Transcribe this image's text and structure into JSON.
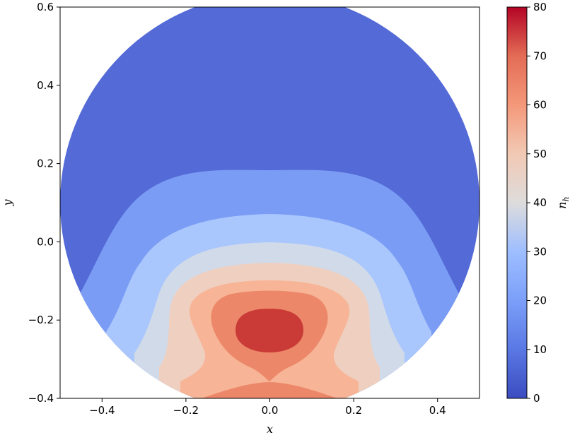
{
  "chart_data": {
    "type": "contourf",
    "title": "",
    "xlabel": "x",
    "ylabel": "y",
    "colorbar_label": "n_h",
    "colorbar_label_main": "n",
    "colorbar_label_sub": "h",
    "colormap": "coolwarm",
    "xlim": [
      -0.5,
      0.5
    ],
    "ylim": [
      -0.4,
      0.6
    ],
    "x_ticks": [
      -0.4,
      -0.2,
      0.0,
      0.2,
      0.4
    ],
    "x_tick_labels": [
      "−0.4",
      "−0.2",
      "0.0",
      "0.2",
      "0.4"
    ],
    "y_ticks": [
      -0.4,
      -0.2,
      0.0,
      0.2,
      0.4,
      0.6
    ],
    "y_tick_labels": [
      "−0.4",
      "−0.2",
      "0.0",
      "0.2",
      "0.4",
      "0.6"
    ],
    "colorbar_range": [
      0,
      80
    ],
    "colorbar_ticks": [
      0,
      10,
      20,
      30,
      40,
      50,
      60,
      70,
      80
    ],
    "colorbar_tick_labels": [
      "0",
      "10",
      "20",
      "30",
      "40",
      "50",
      "60",
      "70",
      "80"
    ],
    "domain": {
      "shape": "circle",
      "center": [
        0.0,
        0.1
      ],
      "radius": 0.5
    },
    "levels": [
      {
        "range": [
          0,
          10
        ],
        "color": "#536ad7"
      },
      {
        "range": [
          10,
          20
        ],
        "color": "#7a9cf4"
      },
      {
        "range": [
          20,
          30
        ],
        "color": "#a9c6fd"
      },
      {
        "range": [
          30,
          40
        ],
        "color": "#d1dae9"
      },
      {
        "range": [
          40,
          50
        ],
        "color": "#efcfbf"
      },
      {
        "range": [
          50,
          60
        ],
        "color": "#f7b496"
      },
      {
        "range": [
          60,
          70
        ],
        "color": "#ec8869"
      },
      {
        "range": [
          70,
          80
        ],
        "color": "#ca3a36"
      }
    ],
    "peak": {
      "x": -0.01,
      "y": -0.23
    },
    "grid": false
  }
}
